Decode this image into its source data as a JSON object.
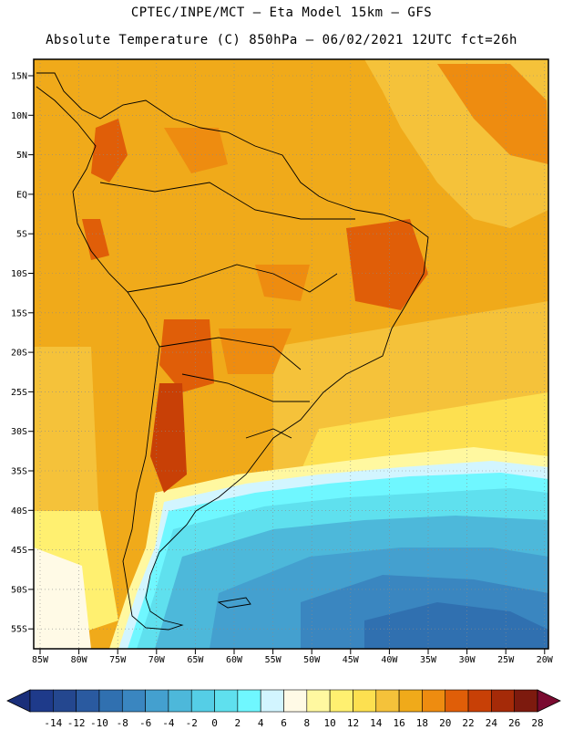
{
  "header": {
    "line1": "CPTEC/INPE/MCT –  Eta Model 15km – GFS",
    "line2": "Absolute Temperature (C) 850hPa – 06/02/2021 12UTC fct=26h"
  },
  "lat_labels": [
    "15N",
    "10N",
    "5N",
    "EQ",
    "5S",
    "10S",
    "15S",
    "20S",
    "25S",
    "30S",
    "35S",
    "40S",
    "45S",
    "50S",
    "55S"
  ],
  "lon_labels": [
    "85W",
    "80W",
    "75W",
    "70W",
    "65W",
    "60W",
    "55W",
    "50W",
    "45W",
    "40W",
    "35W",
    "30W",
    "25W",
    "20W"
  ],
  "colorbar": {
    "ticks": [
      "-14",
      "-12",
      "-10",
      "-8",
      "-6",
      "-4",
      "-2",
      "0",
      "2",
      "4",
      "6",
      "8",
      "10",
      "12",
      "14",
      "16",
      "18",
      "20",
      "22",
      "24",
      "26",
      "28"
    ],
    "colors": [
      "#1e3a8a",
      "#24478f",
      "#2a5aa0",
      "#3070b0",
      "#3a86c0",
      "#44a0cf",
      "#4db8da",
      "#55cee6",
      "#5fe0ee",
      "#6ff7ff",
      "#d2f5ff",
      "#fffae6",
      "#fff8a0",
      "#fff070",
      "#fde050",
      "#f5c23a",
      "#f0aa1a",
      "#ee8c10",
      "#e05e08",
      "#c84006",
      "#a52a08",
      "#7d1a0e"
    ],
    "under_color": "#1a2f7a",
    "over_color": "#7a0a30"
  }
}
